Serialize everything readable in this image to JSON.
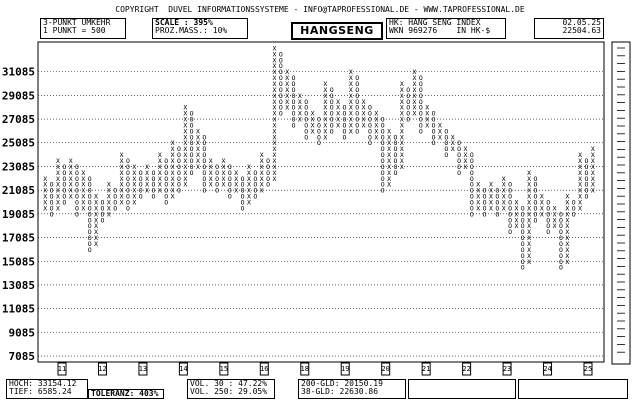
{
  "header": {
    "copyright": "COPYRIGHT  DUVEL INFORMATIONSSYSTEME - INFO@TAPROFESSIONAL.DE - WWW.TAPROFESSIONAL.DE",
    "reversal": "3-PUNKT UMKEHR",
    "box_size": "1 PUNKT = 500",
    "scale": "SCALE : 395%",
    "measure": "PROZ.MASS.: 10%",
    "title": "HANGSENG",
    "instrument": "HK: HANG SENG INDEX",
    "wkn": "WKN 969276    IN HK-$",
    "date": "02.05.25",
    "last_price": "22504.63"
  },
  "chart_data": {
    "type": "point-and-figure",
    "title": "HANGSENG",
    "box_size": 500,
    "reversal": 3,
    "y_ticks": [
      7085,
      9085,
      11085,
      13085,
      15085,
      17085,
      19085,
      21085,
      23085,
      25085,
      27085,
      29085,
      31085
    ],
    "ylim": [
      6585,
      33585
    ],
    "grid": true,
    "year_markers": [
      "11",
      "12",
      "13",
      "14",
      "15",
      "16",
      "18",
      "19",
      "20",
      "21",
      "22",
      "23",
      "24",
      "25"
    ],
    "columns": [
      {
        "type": "X",
        "low": 19585,
        "high": 22085
      },
      {
        "type": "O",
        "low": 19085,
        "high": 21585
      },
      {
        "type": "X",
        "low": 19585,
        "high": 23585
      },
      {
        "type": "O",
        "low": 20085,
        "high": 23085
      },
      {
        "type": "X",
        "low": 20585,
        "high": 23585
      },
      {
        "type": "O",
        "low": 19085,
        "high": 23085
      },
      {
        "type": "X",
        "low": 19585,
        "high": 22585
      },
      {
        "type": "O",
        "low": 16085,
        "high": 22085
      },
      {
        "type": "X",
        "low": 16585,
        "high": 20585
      },
      {
        "type": "O",
        "low": 18585,
        "high": 20085
      },
      {
        "type": "X",
        "low": 19085,
        "high": 21585
      },
      {
        "type": "O",
        "low": 19585,
        "high": 21085
      },
      {
        "type": "X",
        "low": 20085,
        "high": 24085
      },
      {
        "type": "O",
        "low": 19585,
        "high": 23585
      },
      {
        "type": "X",
        "low": 20085,
        "high": 23085
      },
      {
        "type": "O",
        "low": 20585,
        "high": 22585
      },
      {
        "type": "X",
        "low": 21085,
        "high": 23085
      },
      {
        "type": "O",
        "low": 20585,
        "high": 22585
      },
      {
        "type": "X",
        "low": 21085,
        "high": 24085
      },
      {
        "type": "O",
        "low": 20085,
        "high": 23585
      },
      {
        "type": "X",
        "low": 20585,
        "high": 25085
      },
      {
        "type": "O",
        "low": 21085,
        "high": 24585
      },
      {
        "type": "X",
        "low": 21585,
        "high": 28085
      },
      {
        "type": "O",
        "low": 22585,
        "high": 27585
      },
      {
        "type": "X",
        "low": 23085,
        "high": 26085
      },
      {
        "type": "O",
        "low": 21085,
        "high": 25585
      },
      {
        "type": "X",
        "low": 21585,
        "high": 23585
      },
      {
        "type": "O",
        "low": 21085,
        "high": 23085
      },
      {
        "type": "X",
        "low": 21585,
        "high": 23585
      },
      {
        "type": "O",
        "low": 20585,
        "high": 23085
      },
      {
        "type": "X",
        "low": 21085,
        "high": 22585
      },
      {
        "type": "O",
        "low": 19585,
        "high": 22085
      },
      {
        "type": "X",
        "low": 20085,
        "high": 23085
      },
      {
        "type": "O",
        "low": 20585,
        "high": 22585
      },
      {
        "type": "X",
        "low": 21085,
        "high": 24085
      },
      {
        "type": "O",
        "low": 21585,
        "high": 23585
      },
      {
        "type": "X",
        "low": 22085,
        "high": 33085
      },
      {
        "type": "O",
        "low": 27585,
        "high": 32585
      },
      {
        "type": "X",
        "low": 28085,
        "high": 31085
      },
      {
        "type": "O",
        "low": 26585,
        "high": 30585
      },
      {
        "type": "X",
        "low": 27085,
        "high": 29085
      },
      {
        "type": "O",
        "low": 25585,
        "high": 28585
      },
      {
        "type": "X",
        "low": 26085,
        "high": 27585
      },
      {
        "type": "O",
        "low": 25085,
        "high": 27085
      },
      {
        "type": "X",
        "low": 25585,
        "high": 30085
      },
      {
        "type": "O",
        "low": 26085,
        "high": 29585
      },
      {
        "type": "X",
        "low": 26585,
        "high": 28585
      },
      {
        "type": "O",
        "low": 25585,
        "high": 28085
      },
      {
        "type": "X",
        "low": 26085,
        "high": 31085
      },
      {
        "type": "O",
        "low": 26085,
        "high": 30585
      },
      {
        "type": "X",
        "low": 26585,
        "high": 28585
      },
      {
        "type": "O",
        "low": 25085,
        "high": 28085
      },
      {
        "type": "X",
        "low": 25585,
        "high": 27585
      },
      {
        "type": "O",
        "low": 21085,
        "high": 27085
      },
      {
        "type": "X",
        "low": 21585,
        "high": 26085
      },
      {
        "type": "O",
        "low": 22585,
        "high": 25585
      },
      {
        "type": "X",
        "low": 23085,
        "high": 30085
      },
      {
        "type": "O",
        "low": 27085,
        "high": 29585
      },
      {
        "type": "X",
        "low": 27585,
        "high": 31085
      },
      {
        "type": "O",
        "low": 26085,
        "high": 30585
      },
      {
        "type": "X",
        "low": 26585,
        "high": 28085
      },
      {
        "type": "O",
        "low": 25085,
        "high": 27585
      },
      {
        "type": "X",
        "low": 25585,
        "high": 26585
      },
      {
        "type": "O",
        "low": 24085,
        "high": 26085
      },
      {
        "type": "X",
        "low": 24585,
        "high": 25585
      },
      {
        "type": "O",
        "low": 22585,
        "high": 25085
      },
      {
        "type": "X",
        "low": 23085,
        "high": 24585
      },
      {
        "type": "O",
        "low": 19085,
        "high": 24085
      },
      {
        "type": "X",
        "low": 19585,
        "high": 21585
      },
      {
        "type": "O",
        "low": 19085,
        "high": 21085
      },
      {
        "type": "X",
        "low": 19585,
        "high": 21585
      },
      {
        "type": "O",
        "low": 19085,
        "high": 21085
      },
      {
        "type": "X",
        "low": 19585,
        "high": 22085
      },
      {
        "type": "O",
        "low": 17585,
        "high": 21585
      },
      {
        "type": "X",
        "low": 18085,
        "high": 20085
      },
      {
        "type": "O",
        "low": 14585,
        "high": 19585
      },
      {
        "type": "X",
        "low": 15085,
        "high": 22585
      },
      {
        "type": "O",
        "low": 18585,
        "high": 22085
      },
      {
        "type": "X",
        "low": 19085,
        "high": 20585
      },
      {
        "type": "O",
        "low": 17585,
        "high": 20085
      },
      {
        "type": "X",
        "low": 18085,
        "high": 19585
      },
      {
        "type": "O",
        "low": 14585,
        "high": 19085
      },
      {
        "type": "X",
        "low": 15085,
        "high": 20585
      },
      {
        "type": "O",
        "low": 19085,
        "high": 20085
      },
      {
        "type": "X",
        "low": 19585,
        "high": 24085
      },
      {
        "type": "O",
        "low": 20585,
        "high": 23585
      },
      {
        "type": "X",
        "low": 21085,
        "high": 24585
      }
    ]
  },
  "footer": {
    "hoch": "HOCH: 33154.12",
    "tief": "TIEF: 6585.24",
    "toleranz": "TOLERANZ: 403%",
    "vol30": "VOL. 30 : 47.22%",
    "vol250": "VOL. 250: 29.05%",
    "gld200": "200-GLD: 20150.19",
    "gld38": "38-GLD: 22630.86"
  }
}
